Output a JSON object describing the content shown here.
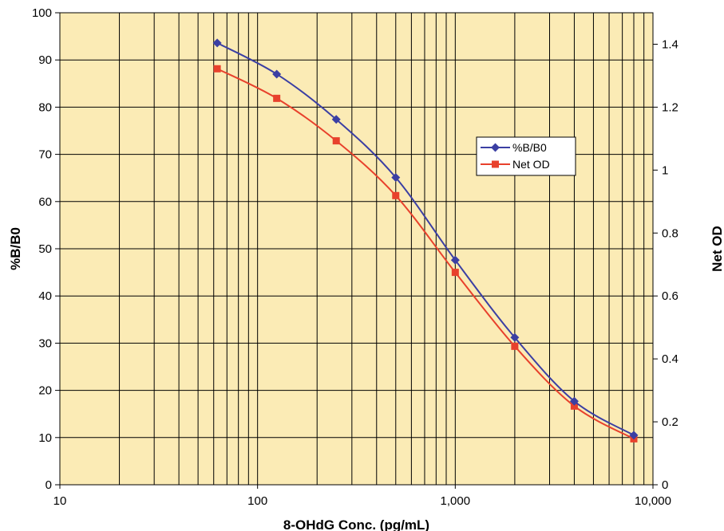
{
  "chart_data": {
    "type": "line",
    "xlabel": "8-OHdG Conc. (pg/mL)",
    "ylabel_left": "%B/B0",
    "ylabel_right": "Net OD",
    "x_scale": "log",
    "xlim": [
      10,
      10000
    ],
    "ylim_left": [
      0,
      100
    ],
    "ylim_right": [
      0,
      1.5
    ],
    "x_ticks": [
      10,
      100,
      1000,
      10000
    ],
    "x_tick_labels": [
      "10",
      "100",
      "1,000",
      "10,000"
    ],
    "y_left_ticks": [
      0,
      10,
      20,
      30,
      40,
      50,
      60,
      70,
      80,
      90,
      100
    ],
    "y_left_tick_labels": [
      "0",
      "10",
      "20",
      "30",
      "40",
      "50",
      "60",
      "70",
      "80",
      "90",
      "100"
    ],
    "y_right_ticks": [
      0,
      0.2,
      0.4,
      0.6,
      0.8,
      1,
      1.2,
      1.4
    ],
    "y_right_tick_labels": [
      "0",
      "0.2",
      "0.4",
      "0.6",
      "0.8",
      "1",
      "1.2",
      "1.4"
    ],
    "grid": true,
    "legend_position": "right-middle",
    "background_color": "#FBEBB5",
    "series": [
      {
        "name": "%B/B0",
        "axis": "left",
        "marker": "diamond",
        "color": "#3B3FA3",
        "x": [
          62.5,
          125,
          250,
          500,
          1000,
          2000,
          4000,
          8000
        ],
        "y": [
          93.6,
          87.0,
          77.4,
          65.1,
          47.6,
          31.2,
          17.7,
          10.5
        ]
      },
      {
        "name": "Net OD",
        "axis": "right",
        "marker": "square",
        "color": "#E8412C",
        "x": [
          62.5,
          125,
          250,
          500,
          1000,
          2000,
          4000,
          8000
        ],
        "y": [
          1.322,
          1.228,
          1.093,
          0.919,
          0.675,
          0.44,
          0.25,
          0.146
        ]
      }
    ]
  }
}
